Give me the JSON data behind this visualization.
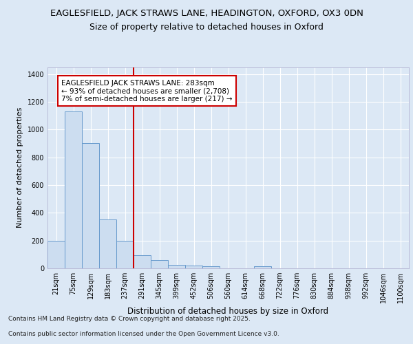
{
  "title1": "EAGLESFIELD, JACK STRAWS LANE, HEADINGTON, OXFORD, OX3 0DN",
  "title2": "Size of property relative to detached houses in Oxford",
  "xlabel": "Distribution of detached houses by size in Oxford",
  "ylabel": "Number of detached properties",
  "categories": [
    "21sqm",
    "75sqm",
    "129sqm",
    "183sqm",
    "237sqm",
    "291sqm",
    "345sqm",
    "399sqm",
    "452sqm",
    "506sqm",
    "560sqm",
    "614sqm",
    "668sqm",
    "722sqm",
    "776sqm",
    "830sqm",
    "884sqm",
    "938sqm",
    "992sqm",
    "1046sqm",
    "1100sqm"
  ],
  "values": [
    200,
    1130,
    900,
    350,
    200,
    95,
    60,
    25,
    20,
    15,
    0,
    0,
    15,
    0,
    0,
    0,
    0,
    0,
    0,
    0,
    0
  ],
  "bar_color": "#ccddf0",
  "bar_edge_color": "#6699cc",
  "vline_index": 5,
  "vline_color": "#cc0000",
  "annotation_text": "EAGLESFIELD JACK STRAWS LANE: 283sqm\n← 93% of detached houses are smaller (2,708)\n7% of semi-detached houses are larger (217) →",
  "annotation_box_color": "#cc0000",
  "ylim": [
    0,
    1450
  ],
  "yticks": [
    0,
    200,
    400,
    600,
    800,
    1000,
    1200,
    1400
  ],
  "footer1": "Contains HM Land Registry data © Crown copyright and database right 2025.",
  "footer2": "Contains public sector information licensed under the Open Government Licence v3.0.",
  "fig_bg_color": "#dce8f5",
  "plot_bg_color": "#dce8f5",
  "title1_fontsize": 9.5,
  "title2_fontsize": 9.0,
  "ylabel_fontsize": 8,
  "xlabel_fontsize": 8.5,
  "tick_fontsize": 7,
  "annotation_fontsize": 7.5,
  "footer_fontsize": 6.5
}
